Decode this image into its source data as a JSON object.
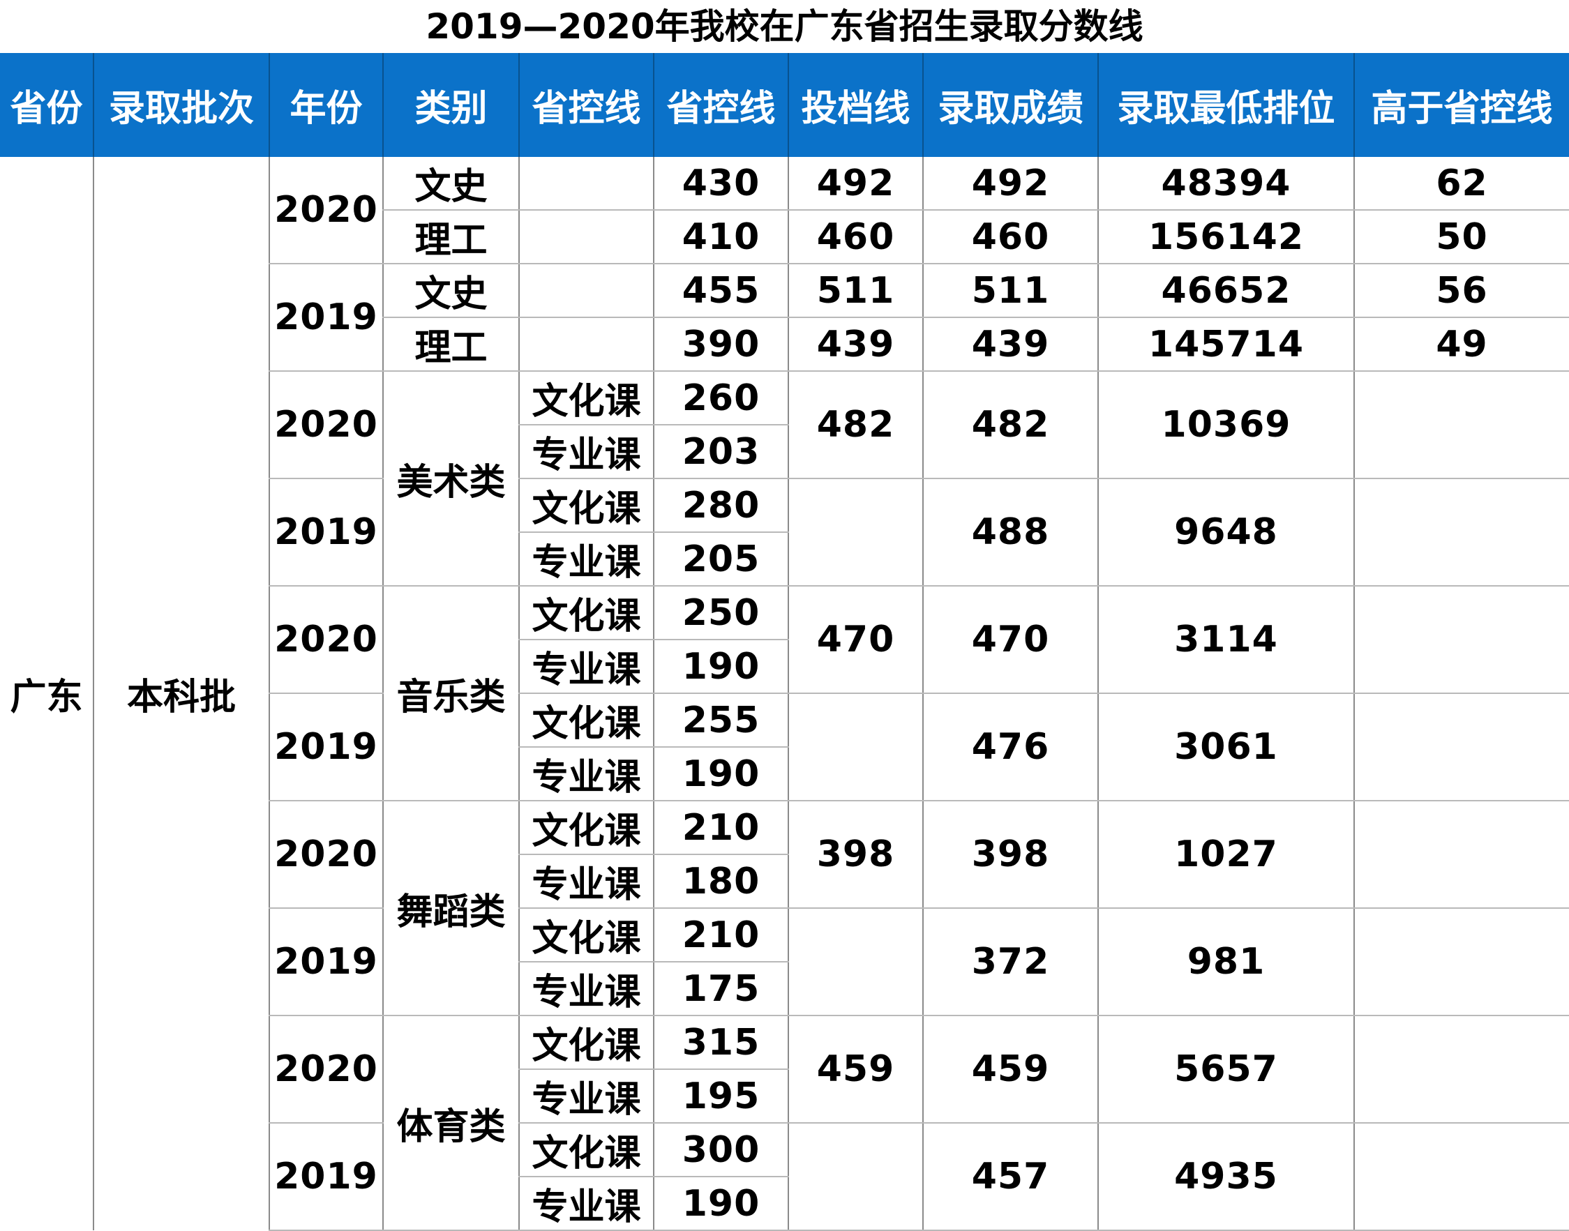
{
  "title": "2019—2020年我校在广东省招生录取分数线",
  "headers": [
    "省份",
    "录取批次",
    "年份",
    "类别",
    "省控线",
    "省控线",
    "投档线",
    "录取成绩",
    "录取最低排位",
    "高于省控线"
  ],
  "province": "广东",
  "batch": "本科批",
  "general": [
    {
      "year": "2020",
      "rows": [
        {
          "type": "文史",
          "control": "430",
          "filing": "492",
          "score": "492",
          "rank": "48394",
          "above": "62"
        },
        {
          "type": "理工",
          "control": "410",
          "filing": "460",
          "score": "460",
          "rank": "156142",
          "above": "50"
        }
      ]
    },
    {
      "year": "2019",
      "rows": [
        {
          "type": "文史",
          "control": "455",
          "filing": "511",
          "score": "511",
          "rank": "46652",
          "above": "56"
        },
        {
          "type": "理工",
          "control": "390",
          "filing": "439",
          "score": "439",
          "rank": "145714",
          "above": "49"
        }
      ]
    }
  ],
  "arts": [
    {
      "category": "美术类",
      "years": [
        {
          "year": "2020",
          "culture_label": "文化课",
          "culture": "260",
          "major_label": "专业课",
          "major": "203",
          "filing": "482",
          "score": "482",
          "rank": "10369"
        },
        {
          "year": "2019",
          "culture_label": "文化课",
          "culture": "280",
          "major_label": "专业课",
          "major": "205",
          "filing": "",
          "score": "488",
          "rank": "9648"
        }
      ]
    },
    {
      "category": "音乐类",
      "years": [
        {
          "year": "2020",
          "culture_label": "文化课",
          "culture": "250",
          "major_label": "专业课",
          "major": "190",
          "filing": "470",
          "score": "470",
          "rank": "3114"
        },
        {
          "year": "2019",
          "culture_label": "文化课",
          "culture": "255",
          "major_label": "专业课",
          "major": "190",
          "filing": "",
          "score": "476",
          "rank": "3061"
        }
      ]
    },
    {
      "category": "舞蹈类",
      "years": [
        {
          "year": "2020",
          "culture_label": "文化课",
          "culture": "210",
          "major_label": "专业课",
          "major": "180",
          "filing": "398",
          "score": "398",
          "rank": "1027"
        },
        {
          "year": "2019",
          "culture_label": "文化课",
          "culture": "210",
          "major_label": "专业课",
          "major": "175",
          "filing": "",
          "score": "372",
          "rank": "981"
        }
      ]
    },
    {
      "category": "体育类",
      "years": [
        {
          "year": "2020",
          "culture_label": "文化课",
          "culture": "315",
          "major_label": "专业课",
          "major": "195",
          "filing": "459",
          "score": "459",
          "rank": "5657"
        },
        {
          "year": "2019",
          "culture_label": "文化课",
          "culture": "300",
          "major_label": "专业课",
          "major": "190",
          "filing": "",
          "score": "457",
          "rank": "4935"
        }
      ]
    }
  ],
  "colors": {
    "header_bg": "#0b72c9",
    "header_text": "#ffffff"
  }
}
